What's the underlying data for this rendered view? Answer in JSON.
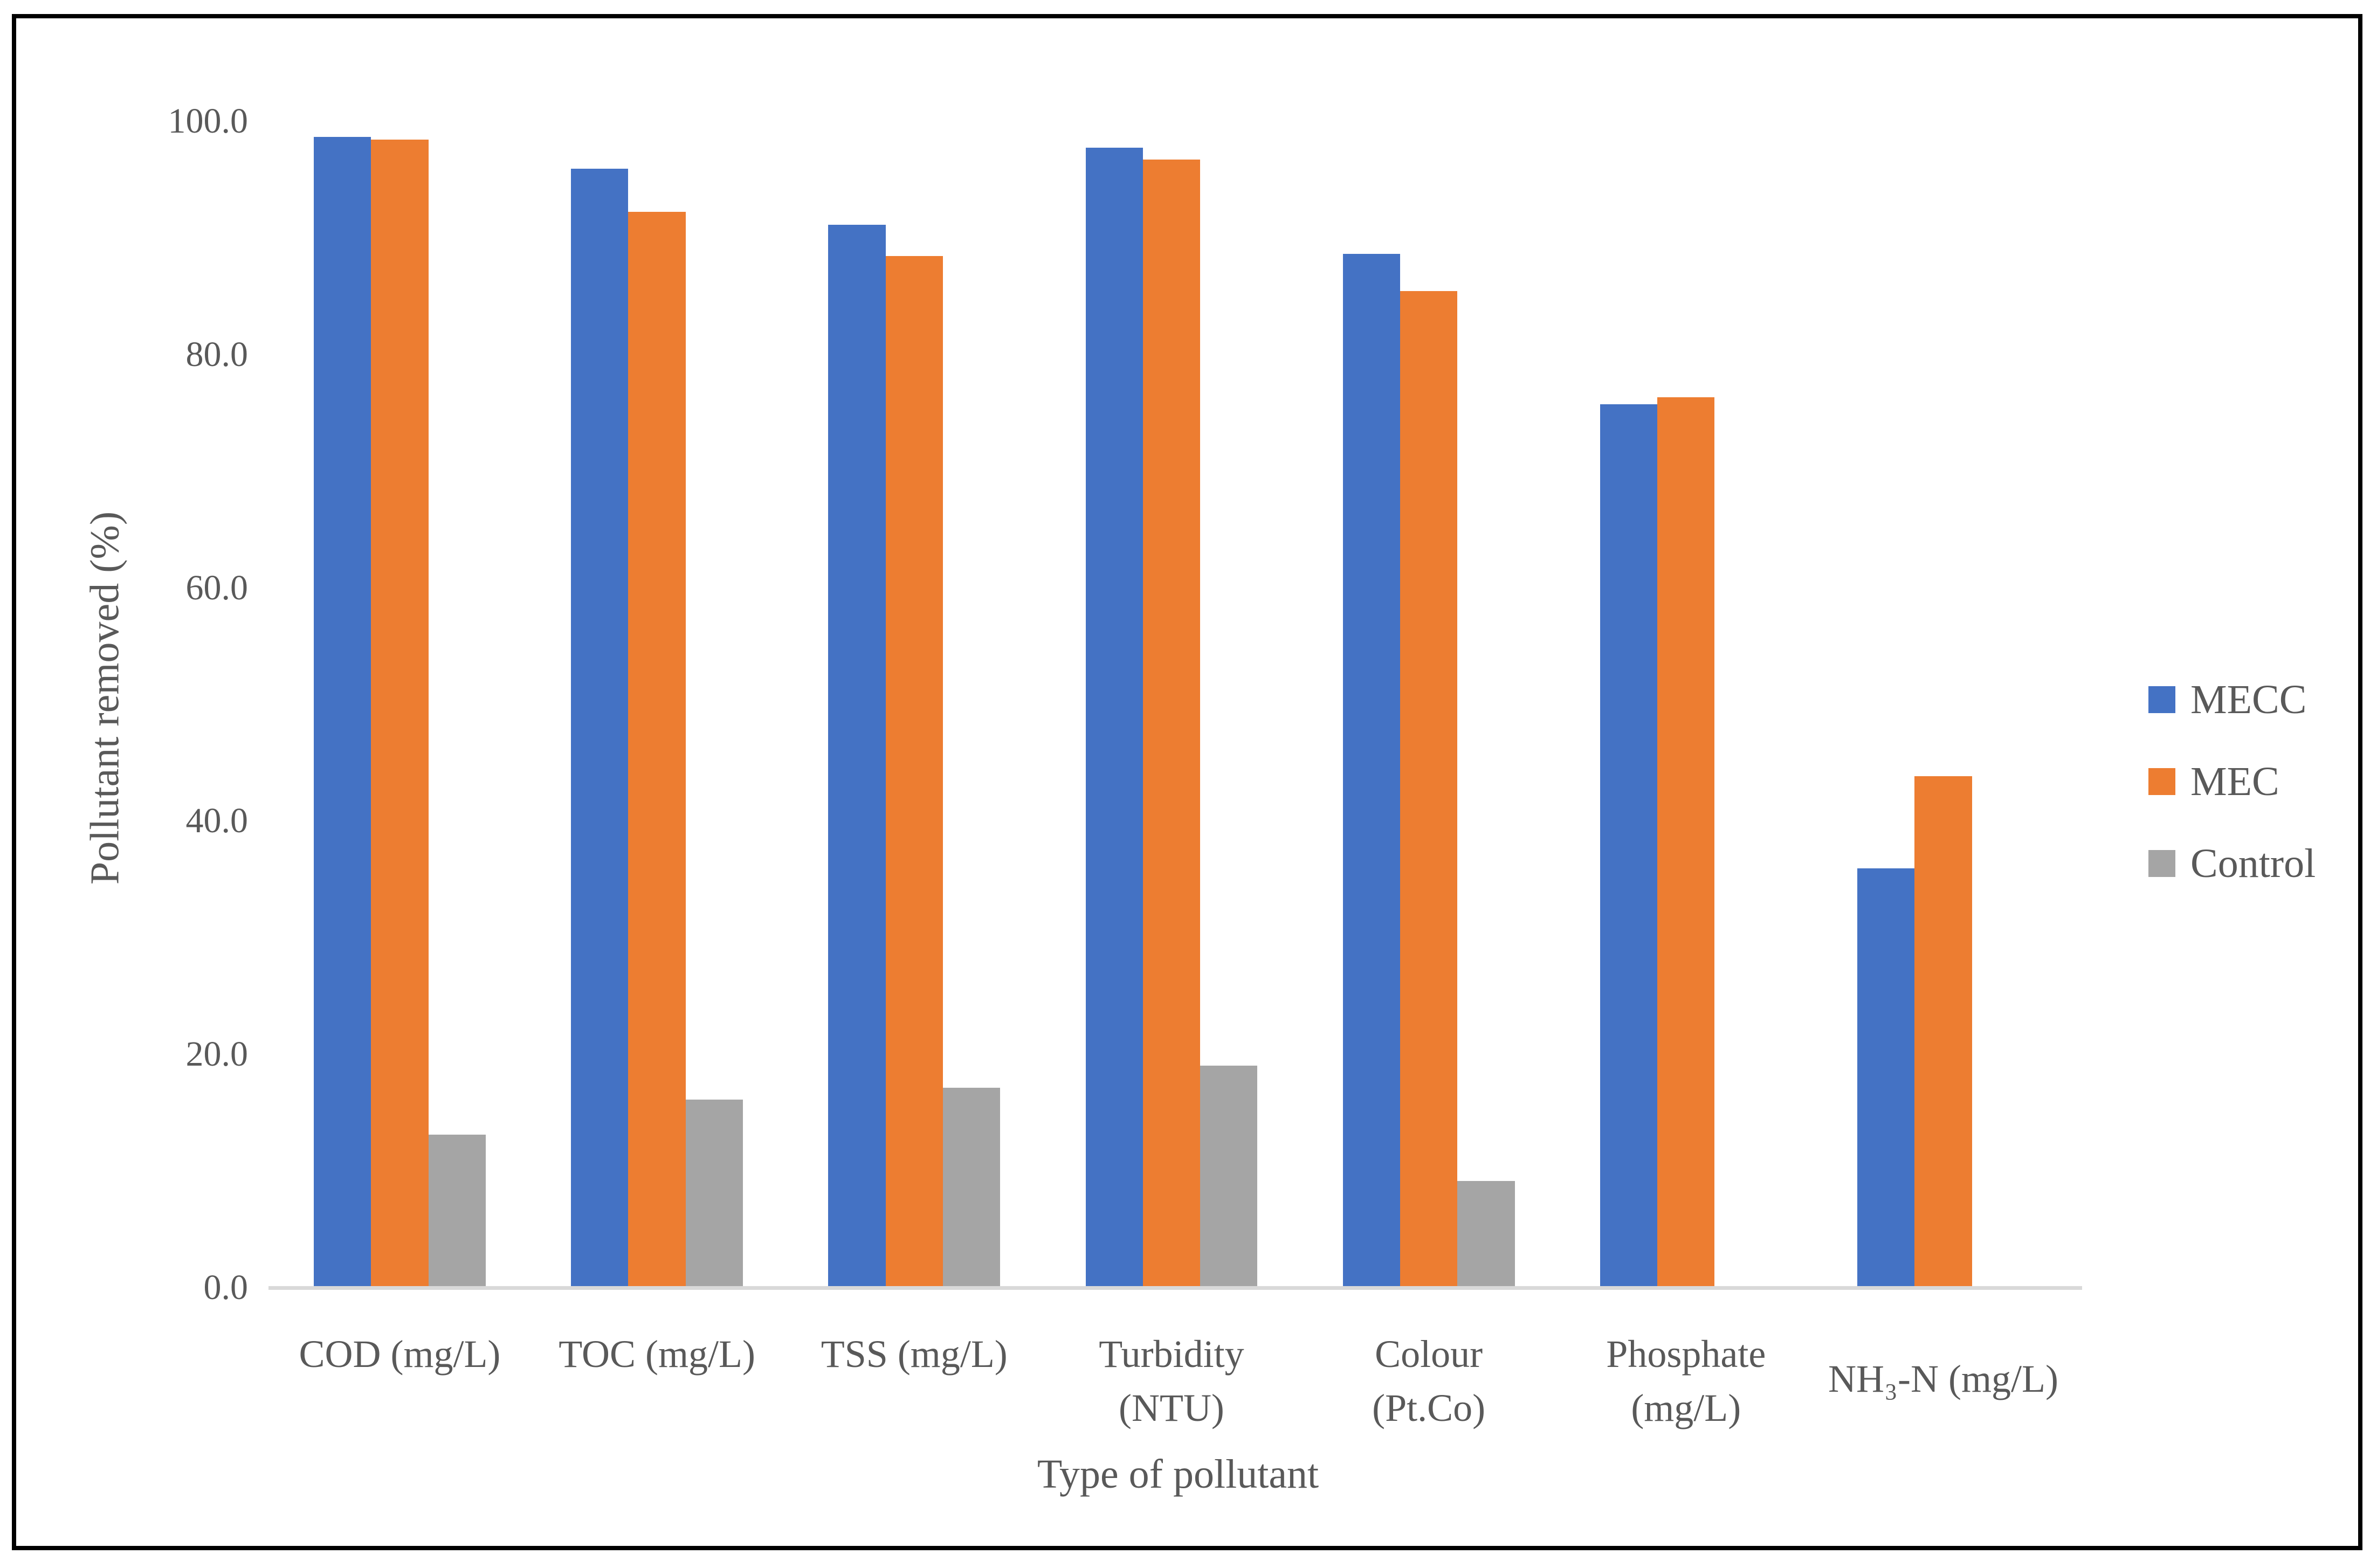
{
  "figure": {
    "y_axis_title": "Pollutant removed (%)",
    "x_axis_title": "Type of pollutant"
  },
  "legend": {
    "position": "right",
    "items": [
      {
        "label": "MECC",
        "color": "#4472C4"
      },
      {
        "label": "MEC",
        "color": "#ED7D31"
      },
      {
        "label": "Control",
        "color": "#A5A5A5"
      }
    ]
  },
  "y_axis": {
    "tick_labels": [
      "0.0",
      "20.0",
      "40.0",
      "60.0",
      "80.0",
      "100.0"
    ],
    "tick_values": [
      0,
      20,
      40,
      60,
      80,
      100
    ]
  },
  "chart_data": {
    "type": "bar",
    "title": "",
    "xlabel": "Type of pollutant",
    "ylabel": "Pollutant removed (%)",
    "ylim": [
      0,
      100
    ],
    "ytick_interval": 20,
    "grid": false,
    "legend_position": "right",
    "categories": [
      "COD (mg/L)",
      "TOC (mg/L)",
      "TSS (mg/L)",
      "Turbidity (NTU)",
      "Colour (Pt.Co)",
      "Phosphate (mg/L)",
      "NH₃-N (mg/L)"
    ],
    "category_label_lines": [
      [
        "COD (mg/L)"
      ],
      [
        "TOC (mg/L)"
      ],
      [
        "TSS (mg/L)"
      ],
      [
        "Turbidity",
        "(NTU)"
      ],
      [
        "Colour",
        "(Pt.Co)"
      ],
      [
        "Phosphate",
        "(mg/L)"
      ],
      [
        "NH₃-N (mg/L)"
      ]
    ],
    "series": [
      {
        "name": "MECC",
        "color": "#4472C4",
        "values": [
          98.5,
          95.8,
          91.0,
          97.6,
          88.5,
          75.6,
          35.8
        ]
      },
      {
        "name": "MEC",
        "color": "#ED7D31",
        "values": [
          98.3,
          92.1,
          88.3,
          96.6,
          85.3,
          76.2,
          43.7
        ]
      },
      {
        "name": "Control",
        "color": "#A5A5A5",
        "values": [
          13.0,
          16.0,
          17.0,
          18.9,
          9.0,
          0,
          0
        ]
      }
    ],
    "colors": {
      "axis_line": "#D9D9D9",
      "text": "#595959",
      "frame_border": "#000000"
    }
  }
}
